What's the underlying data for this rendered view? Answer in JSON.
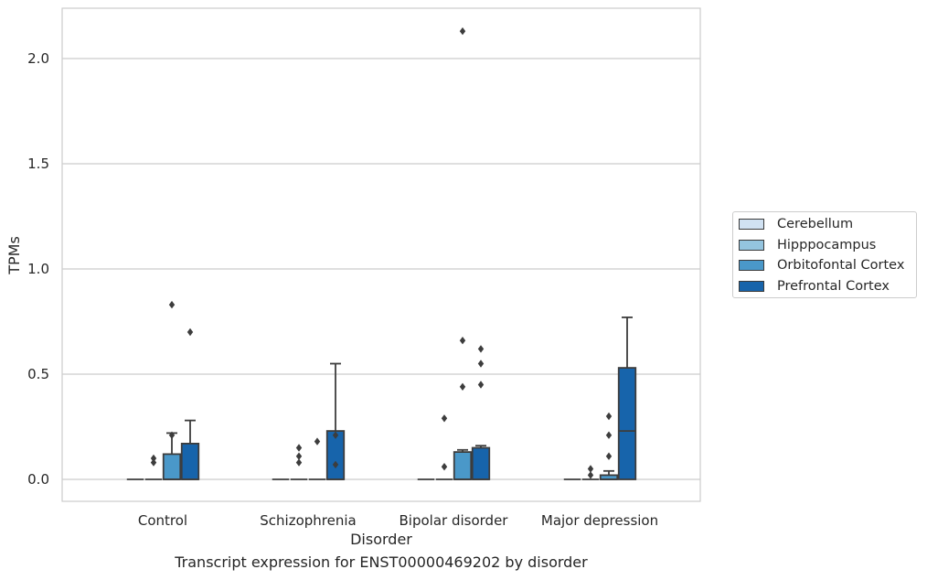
{
  "chart_data": {
    "type": "box",
    "xlabel": "Disorder",
    "ylabel": "TPMs",
    "caption": "Transcript expression for ENST00000469202 by disorder",
    "ylim": [
      -0.1,
      2.35
    ],
    "yticks": [
      0.0,
      0.5,
      1.0,
      1.5,
      2.0
    ],
    "ytick_labels": [
      "0.0",
      "0.5",
      "1.0",
      "1.5",
      "2.0"
    ],
    "grid": "horizontal",
    "legend_position": "right",
    "categories": [
      "Control",
      "Schizophrenia",
      "Bipolar disorder",
      "Major depression"
    ],
    "series": [
      {
        "name": "Cerebellum",
        "color": "#d0e1f2",
        "boxes": [
          {
            "q1": 0,
            "median": 0,
            "q3": 0,
            "whisker_low": 0,
            "whisker_high": 0,
            "outliers": []
          },
          {
            "q1": 0,
            "median": 0,
            "q3": 0,
            "whisker_low": 0,
            "whisker_high": 0,
            "outliers": []
          },
          {
            "q1": 0,
            "median": 0,
            "q3": 0,
            "whisker_low": 0,
            "whisker_high": 0,
            "outliers": []
          },
          {
            "q1": 0,
            "median": 0,
            "q3": 0,
            "whisker_low": 0,
            "whisker_high": 0,
            "outliers": []
          }
        ]
      },
      {
        "name": "Hipppocampus",
        "color": "#94c4df",
        "boxes": [
          {
            "q1": 0,
            "median": 0,
            "q3": 0,
            "whisker_low": 0,
            "whisker_high": 0,
            "outliers": [
              0.08,
              0.1
            ]
          },
          {
            "q1": 0,
            "median": 0,
            "q3": 0,
            "whisker_low": 0,
            "whisker_high": 0,
            "outliers": [
              0.08,
              0.11,
              0.15
            ]
          },
          {
            "q1": 0,
            "median": 0,
            "q3": 0,
            "whisker_low": 0,
            "whisker_high": 0,
            "outliers": [
              0.06,
              0.29
            ]
          },
          {
            "q1": 0,
            "median": 0,
            "q3": 0,
            "whisker_low": 0,
            "whisker_high": 0,
            "outliers": [
              0.02,
              0.05
            ]
          }
        ]
      },
      {
        "name": "Orbitofontal Cortex",
        "color": "#4a98c9",
        "boxes": [
          {
            "q1": 0,
            "median": 0,
            "q3": 0.12,
            "whisker_low": 0,
            "whisker_high": 0.22,
            "outliers": [
              0.21,
              0.83
            ]
          },
          {
            "q1": 0,
            "median": 0,
            "q3": 0,
            "whisker_low": 0,
            "whisker_high": 0,
            "outliers": [
              0.18
            ]
          },
          {
            "q1": 0,
            "median": 0,
            "q3": 0.13,
            "whisker_low": 0,
            "whisker_high": 0.14,
            "outliers": [
              0.44,
              0.66,
              2.13
            ]
          },
          {
            "q1": 0,
            "median": 0,
            "q3": 0.02,
            "whisker_low": 0,
            "whisker_high": 0.04,
            "outliers": [
              0.11,
              0.21,
              0.3
            ]
          }
        ]
      },
      {
        "name": "Prefrontal Cortex",
        "color": "#1764ab",
        "boxes": [
          {
            "q1": 0,
            "median": 0,
            "q3": 0.17,
            "whisker_low": 0,
            "whisker_high": 0.28,
            "outliers": [
              0.7
            ]
          },
          {
            "q1": 0,
            "median": 0,
            "q3": 0.23,
            "whisker_low": 0,
            "whisker_high": 0.55,
            "outliers": [
              0.07,
              0.21
            ]
          },
          {
            "q1": 0,
            "median": 0,
            "q3": 0.15,
            "whisker_low": 0,
            "whisker_high": 0.16,
            "outliers": [
              0.45,
              0.55,
              0.62
            ]
          },
          {
            "q1": 0,
            "median": 0.23,
            "q3": 0.53,
            "whisker_low": 0,
            "whisker_high": 0.77,
            "outliers": []
          }
        ]
      }
    ]
  }
}
